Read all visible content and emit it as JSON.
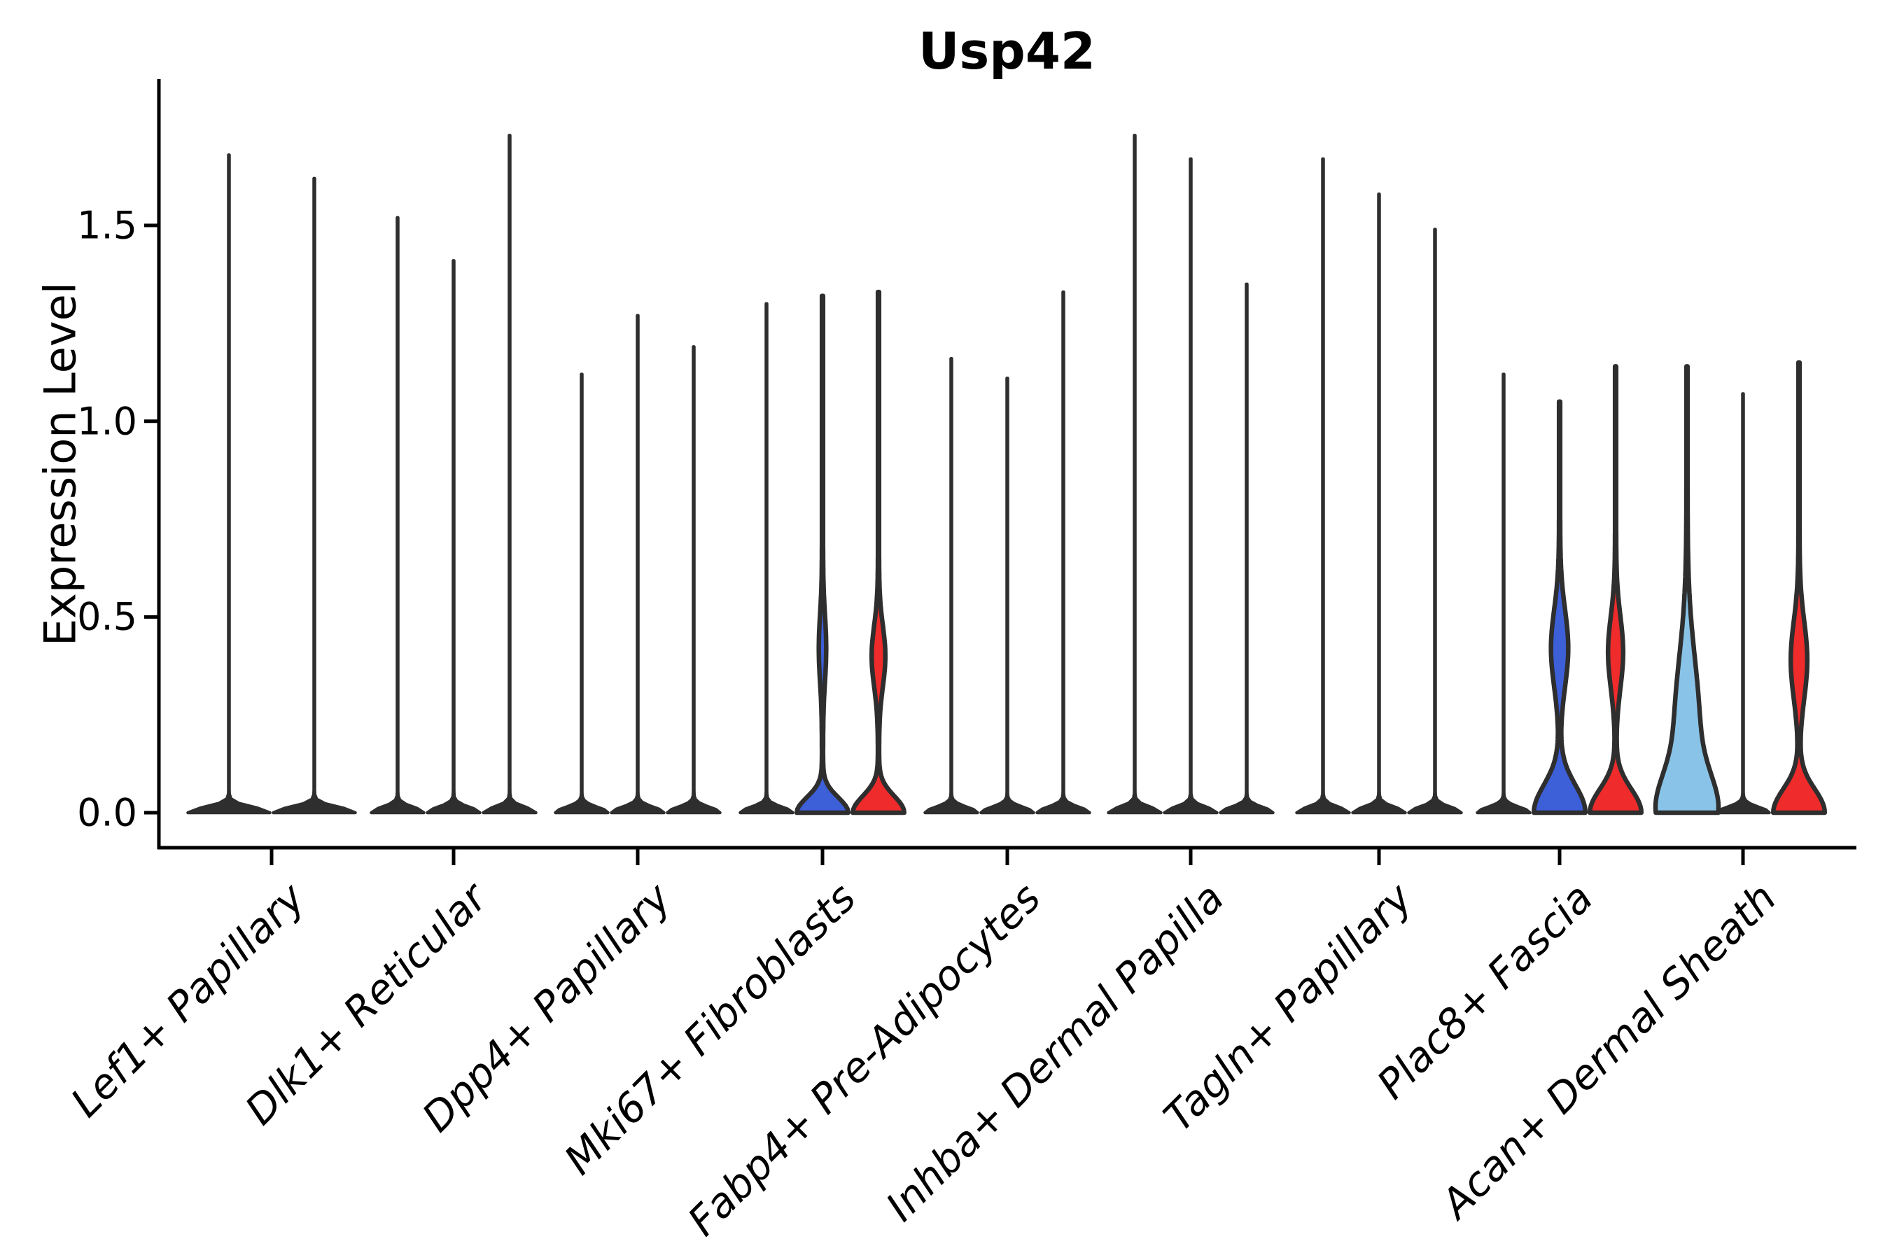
{
  "chart_data": {
    "type": "violin",
    "title": "Usp42",
    "ylabel": "Expression Level",
    "xlabel": "",
    "yticks": [
      "0.0",
      "0.5",
      "1.0",
      "1.5"
    ],
    "ytick_values": [
      0.0,
      0.5,
      1.0,
      1.5
    ],
    "ylim": [
      -0.09,
      1.87
    ],
    "grid": "off",
    "legend": "none",
    "xtick_rotation": 45,
    "colors": {
      "violin_line": "#2e2e2e",
      "blue": "#3d5fd8",
      "red": "#ef2b2b",
      "lightblue": "#89c4e8",
      "axis": "#000000"
    },
    "categories": [
      "Lef1+ Papillary",
      "Dlk1+ Reticular",
      "Dpp4+ Papillary",
      "Mki67+ Fibroblasts",
      "Fabp4+ Pre-Adipocytes",
      "Inhba+ Dermal Papilla",
      "Tagln+ Papillary",
      "Plac8+ Fascia",
      "Acan+ Dermal Sheath"
    ],
    "groups": [
      {
        "label": "Lef1+ Papillary",
        "violins": [
          {
            "max": 1.68,
            "color": "dark",
            "base_sigma": 0.02,
            "bulges": []
          },
          {
            "max": 1.62,
            "color": "dark",
            "base_sigma": 0.02,
            "bulges": []
          }
        ]
      },
      {
        "label": "Dlk1+ Reticular",
        "violins": [
          {
            "max": 1.52,
            "color": "dark",
            "base_sigma": 0.02,
            "bulges": []
          },
          {
            "max": 1.41,
            "color": "dark",
            "base_sigma": 0.02,
            "bulges": []
          },
          {
            "max": 1.73,
            "color": "dark",
            "base_sigma": 0.02,
            "bulges": []
          }
        ]
      },
      {
        "label": "Dpp4+ Papillary",
        "violins": [
          {
            "max": 1.12,
            "color": "dark",
            "base_sigma": 0.02,
            "bulges": []
          },
          {
            "max": 1.27,
            "color": "dark",
            "base_sigma": 0.02,
            "bulges": []
          },
          {
            "max": 1.19,
            "color": "dark",
            "base_sigma": 0.02,
            "bulges": []
          }
        ]
      },
      {
        "label": "Mki67+ Fibroblasts",
        "violins": [
          {
            "max": 1.3,
            "color": "dark",
            "base_sigma": 0.02,
            "bulges": []
          },
          {
            "max": 1.32,
            "color": "blue",
            "base_sigma": 0.055,
            "bulges": [
              {
                "center": 0.42,
                "sigma": 0.12,
                "amp": 4.5
              }
            ]
          },
          {
            "max": 1.33,
            "color": "red",
            "base_sigma": 0.06,
            "bulges": [
              {
                "center": 0.4,
                "sigma": 0.11,
                "amp": 9
              }
            ]
          }
        ]
      },
      {
        "label": "Fabp4+ Pre-Adipocytes",
        "violins": [
          {
            "max": 1.16,
            "color": "dark",
            "base_sigma": 0.02,
            "bulges": []
          },
          {
            "max": 1.11,
            "color": "dark",
            "base_sigma": 0.02,
            "bulges": []
          },
          {
            "max": 1.33,
            "color": "dark",
            "base_sigma": 0.02,
            "bulges": []
          }
        ]
      },
      {
        "label": "Inhba+ Dermal Papilla",
        "violins": [
          {
            "max": 1.73,
            "color": "dark",
            "base_sigma": 0.02,
            "bulges": []
          },
          {
            "max": 1.67,
            "color": "dark",
            "base_sigma": 0.02,
            "bulges": []
          },
          {
            "max": 1.35,
            "color": "dark",
            "base_sigma": 0.02,
            "bulges": []
          }
        ]
      },
      {
        "label": "Tagln+ Papillary",
        "violins": [
          {
            "max": 1.67,
            "color": "dark",
            "base_sigma": 0.02,
            "bulges": []
          },
          {
            "max": 1.58,
            "color": "dark",
            "base_sigma": 0.02,
            "bulges": []
          },
          {
            "max": 1.49,
            "color": "dark",
            "base_sigma": 0.02,
            "bulges": []
          }
        ]
      },
      {
        "label": "Plac8+ Fascia",
        "violins": [
          {
            "max": 1.12,
            "color": "dark",
            "base_sigma": 0.02,
            "bulges": []
          },
          {
            "max": 1.05,
            "color": "blue",
            "base_sigma": 0.1,
            "bulges": [
              {
                "center": 0.42,
                "sigma": 0.14,
                "amp": 11.5
              }
            ]
          },
          {
            "max": 1.14,
            "color": "red",
            "base_sigma": 0.085,
            "bulges": [
              {
                "center": 0.41,
                "sigma": 0.13,
                "amp": 10
              }
            ]
          }
        ]
      },
      {
        "label": "Acan+ Dermal Sheath",
        "violins": [
          {
            "max": 1.14,
            "color": "lightblue",
            "base_sigma": 0.13,
            "bulges": [
              {
                "center": 0.22,
                "sigma": 0.25,
                "amp": 17
              }
            ]
          },
          {
            "max": 1.07,
            "color": "dark",
            "base_sigma": 0.02,
            "bulges": []
          },
          {
            "max": 1.15,
            "color": "red",
            "base_sigma": 0.085,
            "bulges": [
              {
                "center": 0.39,
                "sigma": 0.14,
                "amp": 11
              }
            ]
          }
        ]
      }
    ]
  }
}
